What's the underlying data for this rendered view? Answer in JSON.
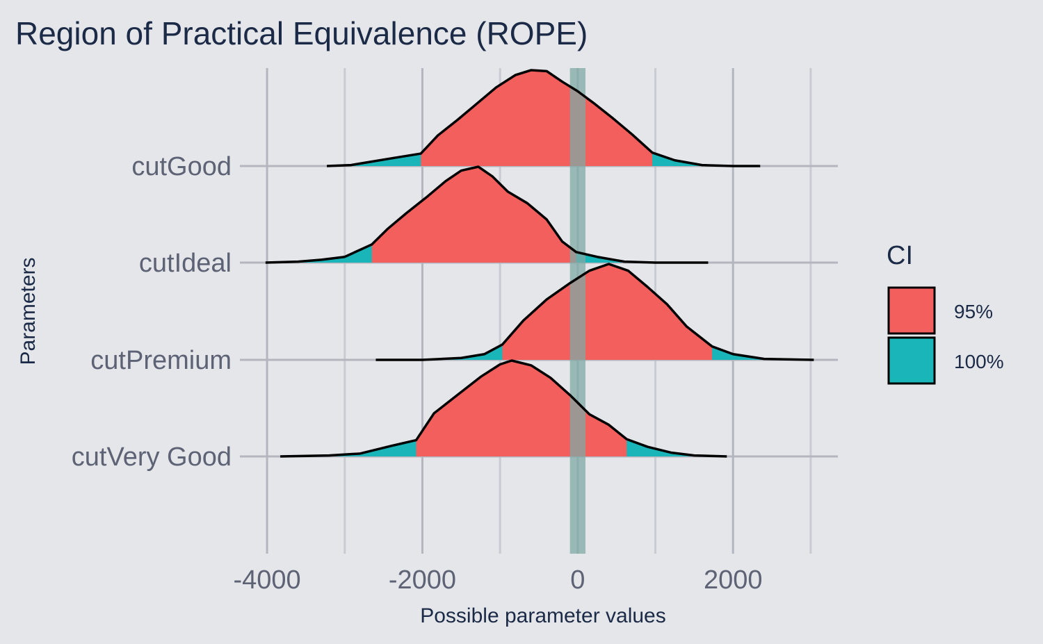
{
  "chart_data": {
    "type": "area",
    "subtype": "ridgeline-density",
    "title": "Region of Practical Equivalence (ROPE)",
    "xlabel": "Possible parameter values",
    "ylabel": "Parameters",
    "xlim": [
      -4350,
      3350
    ],
    "x_ticks": [
      -4000,
      -2000,
      0,
      2000
    ],
    "x_tick_labels": [
      "-4000",
      "-2000",
      "0",
      "2000"
    ],
    "x_minor_ticks": [
      -3000,
      -1000,
      1000,
      3000
    ],
    "rope": {
      "low": -100,
      "high": 100,
      "color": "#7fa9a6"
    },
    "legend": {
      "title": "CI",
      "placement": "right",
      "entries": [
        {
          "label": "95%",
          "color": "#f25f5c"
        },
        {
          "label": "100%",
          "color": "#1ab5b8"
        }
      ]
    },
    "grid": true,
    "ridge_height": 1.0,
    "series": [
      {
        "name": "cutGood",
        "ci95": [
          -2020,
          960
        ],
        "range": [
          -3230,
          2350
        ],
        "density": [
          [
            -3230,
            0
          ],
          [
            -2920,
            0.01
          ],
          [
            -2700,
            0.04
          ],
          [
            -2400,
            0.08
          ],
          [
            -2020,
            0.13
          ],
          [
            -1800,
            0.32
          ],
          [
            -1550,
            0.48
          ],
          [
            -1300,
            0.65
          ],
          [
            -1050,
            0.82
          ],
          [
            -800,
            0.95
          ],
          [
            -600,
            1.0
          ],
          [
            -400,
            0.99
          ],
          [
            -200,
            0.88
          ],
          [
            0,
            0.78
          ],
          [
            200,
            0.66
          ],
          [
            450,
            0.5
          ],
          [
            700,
            0.33
          ],
          [
            960,
            0.14
          ],
          [
            1250,
            0.06
          ],
          [
            1600,
            0.01
          ],
          [
            2000,
            0.0
          ],
          [
            2350,
            0.0
          ]
        ]
      },
      {
        "name": "cutIdeal",
        "ci95": [
          -2650,
          -20
        ],
        "range": [
          -4020,
          1680
        ],
        "density": [
          [
            -4020,
            0
          ],
          [
            -3600,
            0.01
          ],
          [
            -3300,
            0.03
          ],
          [
            -3000,
            0.06
          ],
          [
            -2650,
            0.19
          ],
          [
            -2450,
            0.35
          ],
          [
            -2200,
            0.52
          ],
          [
            -1950,
            0.68
          ],
          [
            -1700,
            0.85
          ],
          [
            -1500,
            0.96
          ],
          [
            -1280,
            1.0
          ],
          [
            -1100,
            0.9
          ],
          [
            -900,
            0.74
          ],
          [
            -650,
            0.62
          ],
          [
            -400,
            0.45
          ],
          [
            -200,
            0.22
          ],
          [
            -20,
            0.11
          ],
          [
            250,
            0.06
          ],
          [
            600,
            0.01
          ],
          [
            1000,
            0.0
          ],
          [
            1680,
            0.0
          ]
        ]
      },
      {
        "name": "cutPremium",
        "ci95": [
          -970,
          1730
        ],
        "range": [
          -2600,
          3040
        ],
        "density": [
          [
            -2600,
            0
          ],
          [
            -2000,
            0.0
          ],
          [
            -1500,
            0.02
          ],
          [
            -1200,
            0.06
          ],
          [
            -970,
            0.16
          ],
          [
            -700,
            0.41
          ],
          [
            -400,
            0.63
          ],
          [
            -100,
            0.8
          ],
          [
            150,
            0.93
          ],
          [
            400,
            1.0
          ],
          [
            650,
            0.93
          ],
          [
            900,
            0.76
          ],
          [
            1150,
            0.58
          ],
          [
            1400,
            0.35
          ],
          [
            1730,
            0.14
          ],
          [
            2000,
            0.06
          ],
          [
            2400,
            0.01
          ],
          [
            3040,
            0.0
          ]
        ]
      },
      {
        "name": "cutVery Good",
        "ci95": [
          -2080,
          630
        ],
        "range": [
          -3830,
          1920
        ],
        "density": [
          [
            -3830,
            0
          ],
          [
            -3200,
            0.01
          ],
          [
            -2800,
            0.03
          ],
          [
            -2400,
            0.11
          ],
          [
            -2080,
            0.17
          ],
          [
            -1850,
            0.45
          ],
          [
            -1550,
            0.64
          ],
          [
            -1250,
            0.83
          ],
          [
            -1000,
            0.96
          ],
          [
            -850,
            1.0
          ],
          [
            -600,
            0.95
          ],
          [
            -350,
            0.82
          ],
          [
            -100,
            0.64
          ],
          [
            150,
            0.44
          ],
          [
            400,
            0.33
          ],
          [
            630,
            0.18
          ],
          [
            900,
            0.1
          ],
          [
            1200,
            0.04
          ],
          [
            1500,
            0.01
          ],
          [
            1920,
            0.0
          ]
        ]
      }
    ]
  }
}
